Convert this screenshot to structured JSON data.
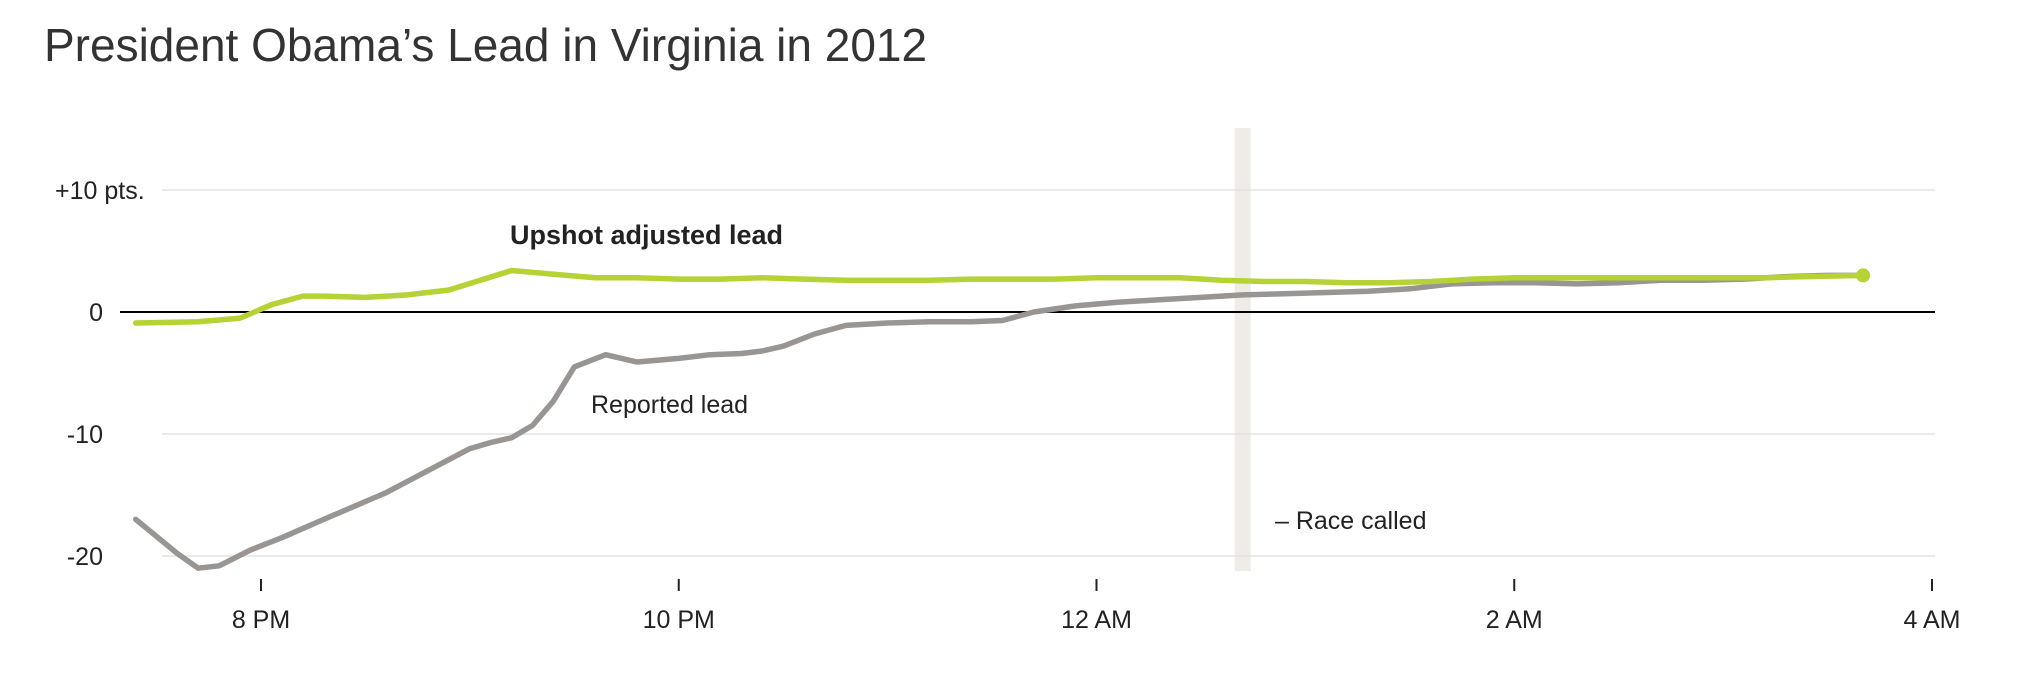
{
  "chart_data": {
    "type": "line",
    "title": "President Obama’s Lead in Virginia in 2012",
    "xlabel": "",
    "ylabel": "",
    "x_ticks": [
      {
        "hour": 20,
        "label": "8 PM"
      },
      {
        "hour": 22,
        "label": "10 PM"
      },
      {
        "hour": 24,
        "label": "12 AM"
      },
      {
        "hour": 26,
        "label": "2 AM"
      },
      {
        "hour": 28,
        "label": "4 AM"
      }
    ],
    "y_ticks": [
      {
        "value": 10,
        "label": "+10 pts."
      },
      {
        "value": 0,
        "label": "0"
      },
      {
        "value": -10,
        "label": "-10"
      },
      {
        "value": -20,
        "label": "-20"
      }
    ],
    "xlim": [
      19.4,
      28
    ],
    "ylim": [
      -20,
      10
    ],
    "grid": true,
    "series": [
      {
        "name": "Upshot adjusted lead",
        "color": "#b5d334",
        "x": [
          19.4,
          19.7,
          19.9,
          20.05,
          20.2,
          20.3,
          20.5,
          20.7,
          20.9,
          21.05,
          21.2,
          21.4,
          21.6,
          21.8,
          22.0,
          22.2,
          22.4,
          22.6,
          22.8,
          23.0,
          23.2,
          23.4,
          23.6,
          23.8,
          24.0,
          24.2,
          24.4,
          24.6,
          24.8,
          25.0,
          25.2,
          25.4,
          25.6,
          25.8,
          26.0,
          26.2,
          26.4,
          26.6,
          26.8,
          27.0,
          27.2,
          27.4,
          27.67
        ],
        "y": [
          -0.9,
          -0.8,
          -0.5,
          0.6,
          1.3,
          1.3,
          1.2,
          1.4,
          1.8,
          2.6,
          3.4,
          3.1,
          2.8,
          2.8,
          2.7,
          2.7,
          2.8,
          2.7,
          2.6,
          2.6,
          2.6,
          2.7,
          2.7,
          2.7,
          2.8,
          2.8,
          2.8,
          2.6,
          2.5,
          2.5,
          2.4,
          2.4,
          2.5,
          2.7,
          2.8,
          2.8,
          2.8,
          2.8,
          2.8,
          2.8,
          2.8,
          2.9,
          3.0
        ]
      },
      {
        "name": "Reported lead",
        "color": "#999592",
        "x": [
          19.4,
          19.6,
          19.7,
          19.8,
          19.95,
          20.1,
          20.3,
          20.6,
          20.8,
          21.0,
          21.1,
          21.2,
          21.3,
          21.4,
          21.5,
          21.65,
          21.8,
          22.0,
          22.15,
          22.3,
          22.4,
          22.5,
          22.65,
          22.8,
          23.0,
          23.2,
          23.4,
          23.55,
          23.7,
          23.9,
          24.1,
          24.3,
          24.5,
          24.7,
          24.9,
          25.1,
          25.3,
          25.5,
          25.7,
          25.9,
          26.1,
          26.3,
          26.5,
          26.7,
          26.9,
          27.1,
          27.3,
          27.5,
          27.67
        ],
        "y": [
          -17.0,
          -19.8,
          -21.0,
          -20.8,
          -19.5,
          -18.5,
          -17.0,
          -14.8,
          -13.0,
          -11.2,
          -10.7,
          -10.3,
          -9.3,
          -7.3,
          -4.5,
          -3.5,
          -4.1,
          -3.8,
          -3.5,
          -3.4,
          -3.2,
          -2.8,
          -1.8,
          -1.1,
          -0.9,
          -0.8,
          -0.8,
          -0.7,
          0.0,
          0.5,
          0.8,
          1.0,
          1.2,
          1.4,
          1.5,
          1.6,
          1.7,
          1.9,
          2.3,
          2.4,
          2.4,
          2.3,
          2.4,
          2.6,
          2.6,
          2.7,
          2.9,
          3.0,
          3.0
        ]
      }
    ],
    "annotations": {
      "series_label_adjusted": "Upshot adjusted lead",
      "series_label_reported": "Reported lead",
      "race_called": "– Race called",
      "race_called_hour": 24.7
    },
    "colors": {
      "adjusted": "#b5d334",
      "reported": "#999592",
      "gridline": "#e3e3e3",
      "zero_line": "#000000",
      "race_called_band": "#efebe7"
    }
  }
}
